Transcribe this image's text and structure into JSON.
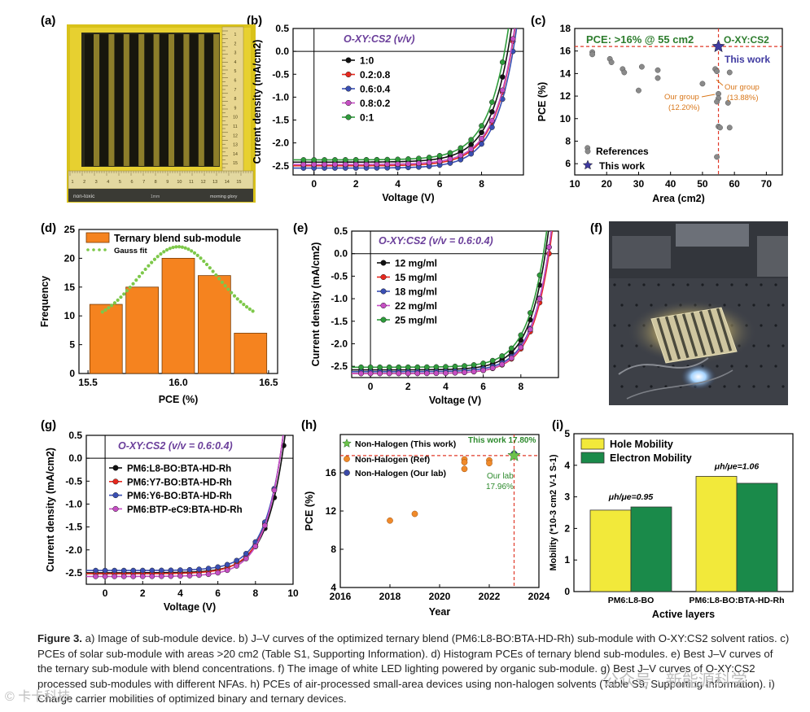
{
  "figure": {
    "panel_labels": [
      "(a)",
      "(b)",
      "(c)",
      "(d)",
      "(e)",
      "(f)",
      "(g)",
      "(h)",
      "(i)"
    ],
    "caption_label": "Figure 3.",
    "caption_text": "a) Image of sub-module device. b) J–V curves of the optimized ternary blend (PM6:L8-BO:BTA-HD-Rh) sub-module with O-XY:CS2 solvent ratios. c) PCEs of solar sub-module with areas >20 cm2 (Table S1, Supporting Information). d) Histogram PCEs of ternary blend sub-modules. e) Best J–V curves of the ternary sub-module with blend concentrations. f) The image of white LED lighting powered by organic sub-module. g) Best J–V curves of O-XY:CS2 processed sub-modules with different NFAs. h) PCEs of air-processed small-area devices using non-halogen solvents (Table S9, Supporting Information). i) Charge carrier mobilities of optimized binary and ternary devices.",
    "photo_a": {
      "ruler_numbers": [
        "1",
        "2",
        "3",
        "4",
        "5",
        "6",
        "7",
        "8",
        "9",
        "10",
        "11",
        "12",
        "13",
        "14",
        "15"
      ],
      "label_left": "non-toxic",
      "label_mid": "1mm",
      "label_right": "morning glory"
    },
    "watermark_left": "© 卡卡科技",
    "watermark_right": "公众号 · 新能源科学"
  },
  "chart_data": [
    {
      "panel": "b",
      "type": "line",
      "title": "O-XY:CS2 (v/v)",
      "xlabel": "Voltage (V)",
      "ylabel": "Current density (mA/cm2)",
      "xlim": [
        -1,
        10
      ],
      "ylim": [
        -2.7,
        0.5
      ],
      "xticks": [
        "0",
        "2",
        "4",
        "6",
        "8"
      ],
      "yticks": [
        "0.5",
        "0.0",
        "-0.5",
        "-1.0",
        "-1.5",
        "-2.0",
        "-2.5"
      ],
      "jv": {
        "voc_step": 0.5
      },
      "series": [
        {
          "name": "1:0",
          "color": "#111111",
          "jsc": -2.42,
          "voc": 9.25
        },
        {
          "name": "0.2:0.8",
          "color": "#e8271d",
          "jsc": -2.5,
          "voc": 9.42
        },
        {
          "name": "0.6:0.4",
          "color": "#3a4fb4",
          "jsc": -2.55,
          "voc": 9.5
        },
        {
          "name": "0.8:0.2",
          "color": "#c64ec4",
          "jsc": -2.47,
          "voc": 9.4
        },
        {
          "name": "0:1",
          "color": "#2e9b3b",
          "jsc": -2.37,
          "voc": 9.1
        }
      ]
    },
    {
      "panel": "c",
      "type": "scatter",
      "xlabel": "Area (cm2)",
      "ylabel": "PCE (%)",
      "xlim": [
        10,
        75
      ],
      "ylim": [
        5,
        18
      ],
      "xticks": [
        "10",
        "20",
        "30",
        "40",
        "50",
        "60",
        "70"
      ],
      "yticks": [
        "6",
        "8",
        "10",
        "12",
        "14",
        "16",
        "18"
      ],
      "annotation_top": "PCE: >16% @ 55 cm2",
      "annotation_top_right": "O-XY:CS2",
      "this_work_label": "This work",
      "group_label_left": "Our group\n(12.20%)",
      "group_label_right": "Our group\n(13.88%)",
      "legend": [
        "References",
        "This work"
      ],
      "references": [
        [
          15.5,
          15.9
        ],
        [
          15.5,
          15.7
        ],
        [
          21,
          15.3
        ],
        [
          21.5,
          15.0
        ],
        [
          25,
          14.4
        ],
        [
          25.5,
          14.1
        ],
        [
          30,
          12.5
        ],
        [
          31,
          14.6
        ],
        [
          36,
          14.3
        ],
        [
          36,
          13.6
        ],
        [
          50,
          13.1
        ],
        [
          54,
          14.4
        ],
        [
          54.5,
          14.2
        ],
        [
          55,
          12.2
        ],
        [
          55,
          11.8
        ],
        [
          54.5,
          11.5
        ],
        [
          55,
          9.3
        ],
        [
          55.5,
          9.2
        ],
        [
          54.5,
          6.6
        ],
        [
          58.5,
          14.1
        ],
        [
          58,
          11.4
        ],
        [
          58.5,
          9.2
        ],
        [
          14,
          7.4
        ]
      ],
      "this_work": [
        55,
        16.4
      ],
      "ref_lines": {
        "x": 55,
        "y": 16.4
      }
    },
    {
      "panel": "d",
      "type": "bar",
      "xlabel": "PCE (%)",
      "ylabel": "Frequency",
      "legend": [
        "Ternary blend sub-module",
        "Gauss fit"
      ],
      "bin_centers": [
        15.6,
        15.8,
        16.0,
        16.2,
        16.4
      ],
      "values": [
        12,
        15,
        20,
        17,
        7
      ],
      "bin_width": 0.18,
      "xlim": [
        15.45,
        16.55
      ],
      "ylim": [
        0,
        25
      ],
      "xticks": [
        "15.5",
        "16.0",
        "16.5"
      ],
      "yticks": [
        "0",
        "5",
        "10",
        "15",
        "20",
        "25"
      ],
      "gauss": {
        "mu": 16.0,
        "sigma": 0.22,
        "amp": 22.0,
        "base": 8.5,
        "from": 15.58,
        "to": 16.42
      }
    },
    {
      "panel": "e",
      "type": "line",
      "title": "O-XY:CS2 (v/v = 0.6:0.4)",
      "xlabel": "Voltage (V)",
      "ylabel": "Current density (mA/cm2)",
      "xlim": [
        -1,
        10
      ],
      "ylim": [
        -2.75,
        0.5
      ],
      "xticks": [
        "0",
        "2",
        "4",
        "6",
        "8"
      ],
      "yticks": [
        "0.5",
        "0.0",
        "-0.5",
        "-1.0",
        "-1.5",
        "-2.0",
        "-2.5"
      ],
      "jv": {
        "voc_step": 0.5
      },
      "series": [
        {
          "name": "12 mg/ml",
          "color": "#111111",
          "jsc": -2.58,
          "voc": 9.3
        },
        {
          "name": "15 mg/ml",
          "color": "#e8271d",
          "jsc": -2.66,
          "voc": 9.5
        },
        {
          "name": "18 mg/ml",
          "color": "#3a4fb4",
          "jsc": -2.62,
          "voc": 9.45
        },
        {
          "name": "22 mg/ml",
          "color": "#c64ec4",
          "jsc": -2.66,
          "voc": 9.45
        },
        {
          "name": "25 mg/ml",
          "color": "#2e9b3b",
          "jsc": -2.52,
          "voc": 9.2
        }
      ]
    },
    {
      "panel": "g",
      "type": "line",
      "title": "O-XY:CS2 (v/v = 0.6:0.4)",
      "xlabel": "Voltage (V)",
      "ylabel": "Current density (mA/cm2)",
      "xlim": [
        -1,
        10
      ],
      "ylim": [
        -2.75,
        0.5
      ],
      "xticks": [
        "0",
        "2",
        "4",
        "6",
        "8",
        "10"
      ],
      "yticks": [
        "0.5",
        "0.0",
        "-0.5",
        "-1.0",
        "-1.5",
        "-2.0",
        "-2.5"
      ],
      "jv": {
        "voc_step": 0.5
      },
      "series": [
        {
          "name": "PM6:L8-BO:BTA-HD-Rh",
          "color": "#111111",
          "jsc": -2.5,
          "voc": 9.4
        },
        {
          "name": "PM6:Y7-BO:BTA-HD-Rh",
          "color": "#e8271d",
          "jsc": -2.52,
          "voc": 9.3
        },
        {
          "name": "PM6:Y6-BO:BTA-HD-Rh",
          "color": "#3a4fb4",
          "jsc": -2.45,
          "voc": 9.3
        },
        {
          "name": "PM6:BTP-eC9:BTA-HD-Rh",
          "color": "#c64ec4",
          "jsc": -2.58,
          "voc": 9.3
        }
      ]
    },
    {
      "panel": "h",
      "type": "scatter",
      "xlabel": "Year",
      "ylabel": "PCE (%)",
      "xlim": [
        2016,
        2024
      ],
      "ylim": [
        4,
        20
      ],
      "xticks": [
        "2016",
        "2018",
        "2020",
        "2022",
        "2024"
      ],
      "yticks": [
        "4",
        "8",
        "12",
        "16"
      ],
      "legend": [
        "Non-Halogen (This work)",
        "Non-Halogen (Ref)",
        "Non-Halogen (Our lab)"
      ],
      "ref": [
        [
          2018,
          11.0
        ],
        [
          2019,
          11.7
        ],
        [
          2021,
          17.4
        ],
        [
          2021,
          17.1
        ],
        [
          2021,
          16.4
        ],
        [
          2022,
          17.3
        ],
        [
          2022,
          17.0
        ]
      ],
      "this_work": [
        2023,
        17.8
      ],
      "our_lab": [
        2023,
        17.96
      ],
      "label_this_work": "This work 17.80%",
      "label_our_lab": "Our lab\n17.96%",
      "ref_lines": {
        "x": 2023,
        "y": 17.8
      }
    },
    {
      "panel": "i",
      "type": "bar",
      "xlabel": "Active layers",
      "ylabel": "Mobility (*10-3 cm2 V-1 S-1)",
      "categories": [
        "PM6:L8-BO",
        "PM6:L8-BO:BTA-HD-Rh"
      ],
      "series": [
        {
          "name": "Hole Mobility",
          "color": "#f2e93a",
          "values": [
            2.58,
            3.65
          ]
        },
        {
          "name": "Electron Mobility",
          "color": "#1a8a4a",
          "values": [
            2.68,
            3.43
          ]
        }
      ],
      "ylim": [
        0,
        5
      ],
      "yticks": [
        "0",
        "1",
        "2",
        "3",
        "4",
        "5"
      ],
      "annotations": [
        "μh/μe=0.95",
        "μh/μe=1.06"
      ]
    }
  ]
}
